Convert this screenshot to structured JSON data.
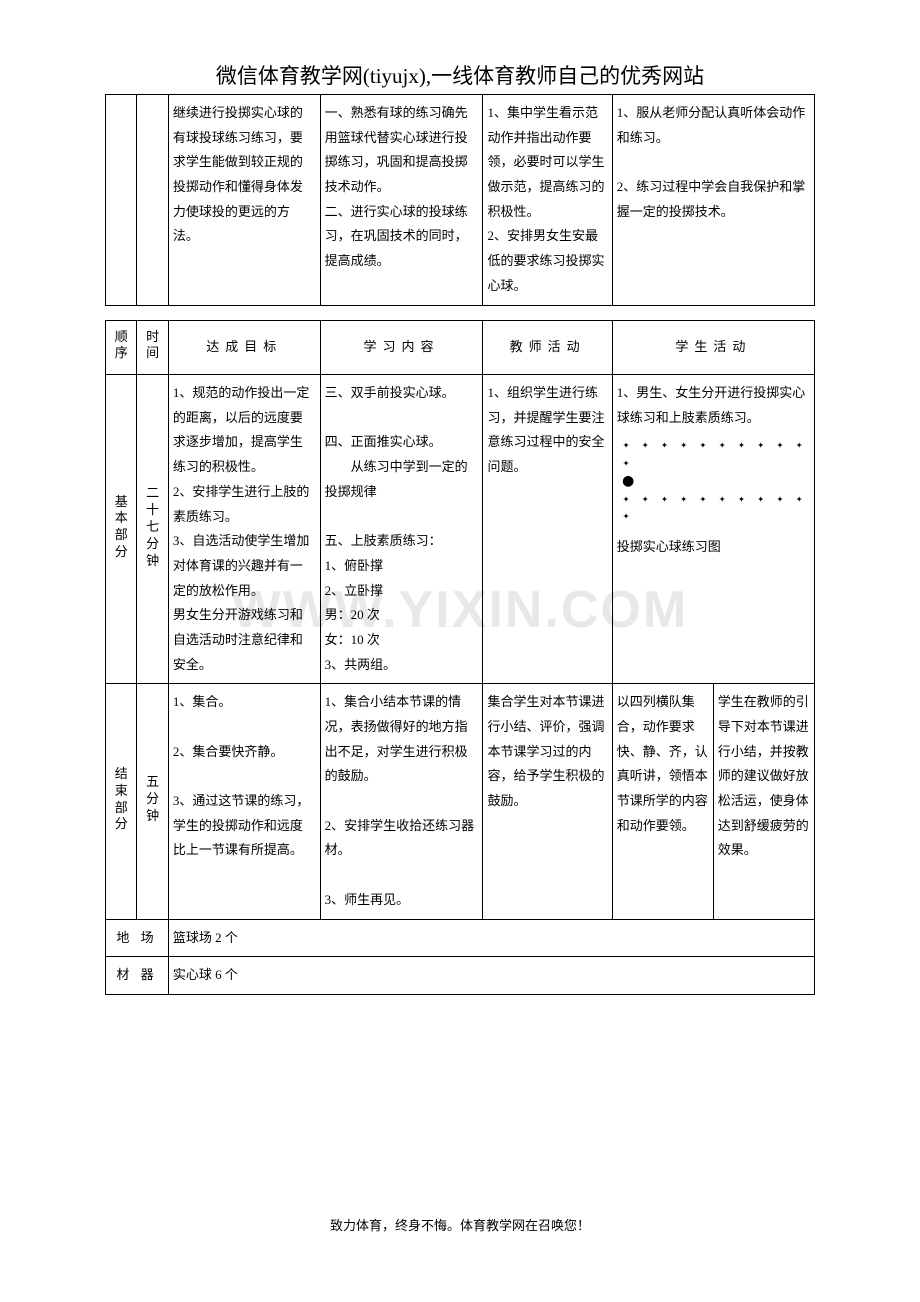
{
  "header": "微信体育教学网(tiyujx),一线体育教师自己的优秀网站",
  "footer": "致力体育，终身不悔。体育教学网在召唤您！",
  "watermark": "WWW.YIXIN.COM",
  "table1": {
    "r1": {
      "goal": "继续进行投掷实心球的有球投球练习练习，要求学生能做到较正规的投掷动作和懂得身体发力使球投的更远的方法。",
      "content": "一、熟悉有球的练习确先用篮球代替实心球进行投掷练习，巩固和提高投掷技术动作。\n二、进行实心球的投球练习，在巩固技术的同时，提高成绩。",
      "teacher": "1、集中学生看示范动作并指出动作要领，必要时可以学生做示范，提高练习的积极性。\n2、安排男女生安最低的要求练习投掷实心球。",
      "student": "1、服从老师分配认真听体会动作和练习。\n\n2、练习过程中学会自我保护和掌握一定的投掷技术。"
    }
  },
  "table2": {
    "head": {
      "c1": "顺序",
      "c2": "时间",
      "c3": "达成目标",
      "c4": "学习内容",
      "c5": "教师活动",
      "c6": "学生活动"
    },
    "r_basic": {
      "seq": "基本部分",
      "time": "二十七分钟",
      "goal": "1、规范的动作投出一定的距离，以后的远度要求逐步增加，提高学生练习的积极性。\n2、安排学生进行上肢的素质练习。\n3、自选活动使学生增加对体育课的兴趣并有一定的放松作用。\n男女生分开游戏练习和自选活动时注意纪律和安全。",
      "content": "三、双手前投实心球。\n\n四、正面推实心球。\n　　从练习中学到一定的投掷规律\n\n五、上肢素质练习：\n1、俯卧撑\n2、立卧撑\n男：20 次\n女：10 次\n3、共两组。",
      "teacher": "1、组织学生进行练习，并提醒学生要注意练习过程中的安全问题。",
      "student_intro": "1、男生、女生分开进行投掷实心球练习和上肢素质练习。",
      "student_caption": "投掷实心球练习图"
    },
    "r_end": {
      "seq": "结束部分",
      "time": "五分钟",
      "goal": "1、集合。\n\n2、集合要快齐静。\n\n3、通过这节课的练习，学生的投掷动作和远度比上一节课有所提高。",
      "content": "1、集合小结本节课的情况，表扬做得好的地方指出不足，对学生进行积极的鼓励。\n\n2、安排学生收拾还练习器材。\n\n3、师生再见。",
      "teacher": "集合学生对本节课进行小结、评价，强调本节课学习过的内容，给予学生积极的鼓励。",
      "student_a": "以四列横队集合，动作要求快、静、齐，认真听讲，领悟本节课所学的内容和动作要领。",
      "student_b": "学生在教师的引导下对本节课进行小结，并按教师的建议做好放松活运，使身体达到舒缓疲劳的效果。"
    },
    "venue_label": "地 场",
    "venue_value": "篮球场 2 个",
    "equip_label": "材 器",
    "equip_value": "实心球 6 个"
  }
}
